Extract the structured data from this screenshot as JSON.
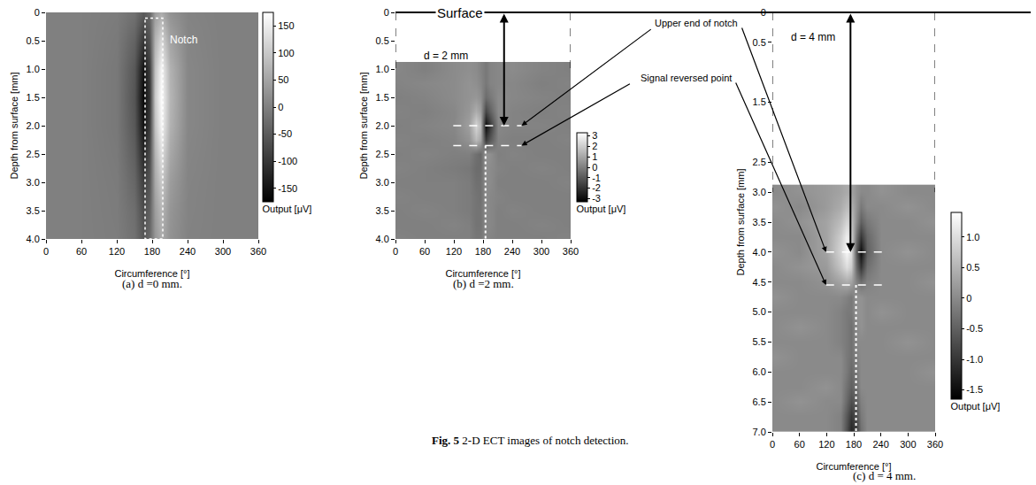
{
  "figure": {
    "label": "Fig. 5",
    "caption": "2-D ECT images of notch detection."
  },
  "surface_label": "Surface",
  "chart_data": [
    {
      "type": "heatmap",
      "caption": "(a) d =0 mm.",
      "x_label": "Circumference [°]",
      "y_label": "Depth from surface [mm]",
      "colorbar_label": "Output [μV]",
      "notch": {
        "text": "Notch",
        "x": [
          168,
          198
        ],
        "y": [
          0.1,
          4.0
        ]
      },
      "x": [
        0,
        60,
        120,
        150,
        165,
        175,
        185,
        195,
        210,
        240,
        300,
        360
      ],
      "y": [
        0,
        0.5,
        1,
        1.5,
        2,
        2.5,
        3,
        3.5,
        4
      ],
      "z": [
        [
          0,
          0,
          -5,
          -20,
          -50,
          -30,
          40,
          60,
          25,
          5,
          0,
          0
        ],
        [
          0,
          0,
          -8,
          -40,
          -100,
          -60,
          70,
          120,
          50,
          8,
          0,
          0
        ],
        [
          0,
          0,
          -10,
          -55,
          -150,
          -90,
          90,
          160,
          70,
          10,
          0,
          0
        ],
        [
          0,
          0,
          -10,
          -60,
          -165,
          -100,
          100,
          170,
          75,
          10,
          0,
          0
        ],
        [
          0,
          0,
          -10,
          -55,
          -150,
          -90,
          90,
          160,
          70,
          10,
          0,
          0
        ],
        [
          0,
          0,
          -8,
          -45,
          -120,
          -70,
          70,
          130,
          55,
          8,
          0,
          0
        ],
        [
          0,
          0,
          -6,
          -35,
          -90,
          -55,
          55,
          100,
          40,
          6,
          0,
          0
        ],
        [
          0,
          0,
          -5,
          -25,
          -70,
          -40,
          40,
          75,
          30,
          5,
          0,
          0
        ],
        [
          0,
          0,
          -4,
          -20,
          -55,
          -30,
          30,
          60,
          25,
          4,
          0,
          0
        ]
      ],
      "xlim": [
        0,
        360
      ],
      "xticks": [
        0,
        60,
        120,
        180,
        240,
        300,
        360
      ],
      "ylim": [
        0,
        4
      ],
      "yticks": [
        0,
        0.5,
        {
          "value": 1,
          "label": "1.0"
        },
        1.5,
        {
          "value": 2,
          "label": "2.0"
        },
        2.5,
        {
          "value": 3,
          "label": "3.0"
        },
        3.5,
        {
          "value": 4,
          "label": "4.0"
        }
      ],
      "zlim": [
        -175,
        175
      ],
      "zticks": [
        -150,
        -100,
        -50,
        0,
        50,
        100,
        150
      ]
    },
    {
      "type": "heatmap",
      "caption": "(b) d =2 mm.",
      "note": "d = 2 mm",
      "x_label": "Circumference [°]",
      "y_label": "Depth from surface [mm]",
      "colorbar_label": "Output [μV]",
      "markers": [
        {
          "text": "Upper end of notch",
          "depth": 2.0
        },
        {
          "text": "Signal reversed point",
          "depth": 2.35
        }
      ],
      "notch_x": 185,
      "x": [
        0,
        60,
        120,
        150,
        165,
        175,
        185,
        195,
        210,
        240,
        300,
        360
      ],
      "y": [
        1,
        1.25,
        1.5,
        1.75,
        2,
        2.25,
        2.5,
        2.75,
        3,
        3.25,
        3.5,
        3.75,
        4
      ],
      "z": [
        [
          0.2,
          0,
          0.3,
          0.4,
          0.3,
          0.1,
          -0.2,
          0.1,
          0.2,
          0.3,
          0.1,
          0
        ],
        [
          0.1,
          0.2,
          0.3,
          0.5,
          0.4,
          0.2,
          -0.2,
          0.1,
          0.2,
          0.2,
          0,
          0.1
        ],
        [
          0,
          0.1,
          0.3,
          0.5,
          0.6,
          0.4,
          -0.5,
          -0.2,
          0.3,
          0.2,
          0.1,
          0
        ],
        [
          0.1,
          0,
          0.2,
          0.6,
          1.2,
          0.8,
          -1.5,
          -0.8,
          0.3,
          0.1,
          0,
          0.1
        ],
        [
          0,
          0.1,
          0.2,
          0.8,
          2.2,
          1.5,
          -3.0,
          -1.8,
          0.2,
          0.1,
          0.1,
          0
        ],
        [
          0.1,
          0,
          0.1,
          0.5,
          1.5,
          1.0,
          -1.8,
          -1.0,
          0.1,
          0,
          0,
          0.1
        ],
        [
          0,
          0.1,
          0,
          0,
          -0.4,
          -0.6,
          0.5,
          0.4,
          0,
          0.1,
          0,
          0
        ],
        [
          0.1,
          0,
          -0.1,
          -0.2,
          -0.5,
          -0.5,
          0.4,
          0.3,
          0.1,
          0,
          0.1,
          0
        ],
        [
          0,
          0,
          0,
          -0.1,
          -0.4,
          -0.4,
          0.3,
          0.3,
          0,
          0,
          0,
          0.1
        ],
        [
          0.1,
          0,
          0,
          -0.1,
          -0.3,
          -0.4,
          0.3,
          0.2,
          0.1,
          0,
          0,
          0
        ],
        [
          0,
          0.1,
          0,
          -0.1,
          -0.3,
          -0.3,
          0.3,
          0.2,
          0,
          0.1,
          0,
          0
        ],
        [
          0,
          0,
          0.1,
          0,
          -0.3,
          -0.3,
          0.2,
          0.2,
          0,
          0,
          0.1,
          0
        ],
        [
          0.1,
          0,
          0,
          0,
          -0.2,
          -0.2,
          0.2,
          0.1,
          0,
          0,
          0,
          0.1
        ]
      ],
      "xlim": [
        0,
        360
      ],
      "xticks": [
        0,
        60,
        120,
        180,
        240,
        300,
        360
      ],
      "ylim": [
        0,
        4
      ],
      "yticks": [
        0,
        0.5,
        {
          "value": 1,
          "label": "1.0"
        },
        1.5,
        {
          "value": 2,
          "label": "2.0"
        },
        2.5,
        {
          "value": 3,
          "label": "3.0"
        },
        3.5,
        {
          "value": 4,
          "label": "4.0"
        }
      ],
      "zlim": [
        -3.3,
        3.3
      ],
      "zticks": [
        -3,
        -2,
        -1,
        0,
        1,
        2,
        3
      ]
    },
    {
      "type": "heatmap",
      "caption": "(c) d = 4 mm.",
      "note": "d = 4 mm",
      "x_label": "Circumference [°]",
      "y_label": "Depth from surface [mm]",
      "colorbar_label": "Output [μV]",
      "markers": [
        {
          "text": "Upper end of notch",
          "depth": 4.0
        },
        {
          "text": "Signal reversed point",
          "depth": 4.55
        }
      ],
      "notch_x": 185,
      "x": [
        0,
        60,
        120,
        150,
        165,
        175,
        185,
        195,
        210,
        240,
        300,
        360
      ],
      "y": [
        3,
        3.25,
        3.5,
        3.75,
        4,
        4.25,
        4.5,
        4.75,
        5,
        5.25,
        5.5,
        5.75,
        6,
        6.25,
        6.5,
        6.75,
        7
      ],
      "z": [
        [
          0,
          0.1,
          0.2,
          0.3,
          0.4,
          0.3,
          0.1,
          0,
          0,
          0.1,
          0,
          0
        ],
        [
          0.1,
          0,
          0.2,
          0.4,
          0.6,
          0.5,
          0.1,
          -0.2,
          0,
          0,
          0.1,
          0
        ],
        [
          0,
          0.1,
          0.3,
          0.6,
          0.9,
          0.7,
          0,
          -0.5,
          -0.2,
          0,
          0,
          0.1
        ],
        [
          0,
          0,
          0.3,
          0.8,
          1.2,
          0.9,
          -0.3,
          -1.0,
          -0.4,
          0,
          0,
          0
        ],
        [
          0.1,
          0,
          0.3,
          0.9,
          1.3,
          1.0,
          -0.6,
          -1.5,
          -0.5,
          0,
          0.1,
          0
        ],
        [
          0,
          0.1,
          0.2,
          0.7,
          1.0,
          0.8,
          -0.4,
          -1.0,
          -0.3,
          0,
          0,
          0
        ],
        [
          0,
          0,
          0.1,
          0.3,
          0.4,
          0.3,
          -0.1,
          -0.3,
          -0.1,
          0,
          0,
          0.1
        ],
        [
          0.1,
          0,
          0,
          0,
          -0.1,
          -0.2,
          0.1,
          0.1,
          0,
          0,
          0,
          0
        ],
        [
          0,
          0,
          0,
          -0.1,
          -0.2,
          -0.2,
          0.1,
          0.1,
          0,
          0.1,
          0,
          0
        ],
        [
          0,
          0.1,
          0,
          -0.1,
          -0.2,
          -0.3,
          0,
          0.1,
          0,
          0,
          0,
          0
        ],
        [
          0,
          0,
          0,
          -0.1,
          -0.2,
          -0.3,
          0,
          0,
          0,
          0,
          0.1,
          0
        ],
        [
          0.1,
          0,
          0,
          0,
          -0.2,
          -0.3,
          -0.1,
          0,
          0,
          0,
          0,
          0
        ],
        [
          0,
          0,
          0,
          0,
          -0.2,
          -0.4,
          -0.2,
          0,
          0,
          0,
          0,
          0.1
        ],
        [
          0,
          0,
          0.1,
          0,
          -0.3,
          -0.5,
          -0.3,
          0,
          0,
          0,
          0,
          0
        ],
        [
          0,
          0.1,
          0,
          0,
          -0.4,
          -0.7,
          -0.5,
          -0.1,
          0,
          0,
          0,
          0
        ],
        [
          0,
          0,
          0,
          -0.1,
          -0.6,
          -1.0,
          -0.7,
          -0.2,
          0,
          0,
          0,
          0
        ],
        [
          0,
          0,
          0,
          -0.1,
          -0.7,
          -1.2,
          -0.9,
          -0.3,
          0,
          0,
          0,
          0
        ]
      ],
      "xlim": [
        0,
        360
      ],
      "xticks": [
        0,
        60,
        120,
        180,
        240,
        300,
        360
      ],
      "ylim": [
        0,
        7
      ],
      "yticks": [
        0,
        0.5,
        1.5,
        2.5,
        {
          "value": 3,
          "label": "3.0"
        },
        3.5,
        {
          "value": 4,
          "label": "4.0"
        },
        4.5,
        {
          "value": 5,
          "label": "5.0"
        },
        5.5,
        {
          "value": 6,
          "label": "6.0"
        },
        6.5,
        {
          "value": 7,
          "label": "7.0"
        }
      ],
      "zlim": [
        -1.65,
        1.4
      ],
      "zticks": [
        -1.5,
        {
          "value": -1,
          "label": "-1.0"
        },
        -0.5,
        0,
        0.5,
        {
          "value": 1,
          "label": "1.0"
        }
      ]
    }
  ]
}
